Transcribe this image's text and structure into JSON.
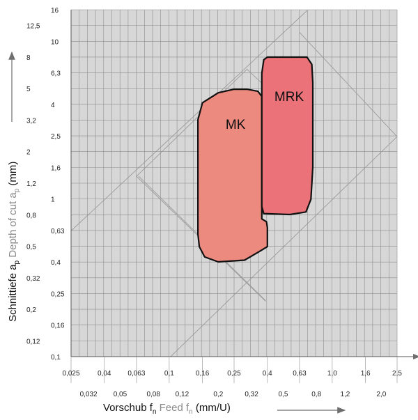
{
  "chart_data": {
    "type": "area",
    "x_scale": "log",
    "y_scale": "log",
    "xlim": [
      0.025,
      2.5
    ],
    "ylim": [
      0.1,
      16
    ],
    "grid": true,
    "colors": {
      "background": "#d7d7d7",
      "grid": "#8c8c8c",
      "diagonal": "#9a9a9a",
      "MK": "#ec8a80",
      "MRK": "#ec727a",
      "outline": "#111111"
    },
    "x_ticks_top": [
      "0,025",
      "0,04",
      "0,063",
      "0,1",
      "0,16",
      "0,25",
      "0,4",
      "0,63",
      "1,0",
      "1,6",
      "2,5"
    ],
    "x_ticks_bottom": [
      "0,032",
      "0,05",
      "0,08",
      "0,12",
      "0,2",
      "0,32",
      "0,5",
      "0,8",
      "1,2",
      "2,0"
    ],
    "y_ticks": [
      "0,1",
      "0,12",
      "0,16",
      "0,2",
      "0,25",
      "0,32",
      "0,4",
      "0,5",
      "0,63",
      "0,8",
      "1",
      "1,2",
      "1,6",
      "2",
      "2,5",
      "3,2",
      "4",
      "5",
      "6,3",
      "8",
      "10",
      "12,5",
      "16"
    ],
    "xlabel": {
      "de": "Vorschub f",
      "sub": "n",
      "en": " Feed f",
      "en_sub": "n",
      "unit": " (mm/U)"
    },
    "ylabel": {
      "de": "Schnittiefe a",
      "sub": "p",
      "en": " Depth of cut a",
      "en_sub": "p",
      "unit": " (mm)"
    },
    "regions": [
      {
        "name": "MK",
        "label": "MK",
        "polygon": [
          [
            0.15,
            3.2
          ],
          [
            0.16,
            4.1
          ],
          [
            0.2,
            4.75
          ],
          [
            0.25,
            5.0
          ],
          [
            0.3,
            5.0
          ],
          [
            0.35,
            4.85
          ],
          [
            0.37,
            4.5
          ],
          [
            0.37,
            0.75
          ],
          [
            0.395,
            0.72
          ],
          [
            0.4,
            0.66
          ],
          [
            0.4,
            0.5
          ],
          [
            0.35,
            0.46
          ],
          [
            0.29,
            0.41
          ],
          [
            0.2,
            0.4
          ],
          [
            0.165,
            0.43
          ],
          [
            0.153,
            0.5
          ],
          [
            0.15,
            0.6
          ]
        ]
      },
      {
        "name": "MRK",
        "label": "MRK",
        "polygon": [
          [
            0.37,
            6.3
          ],
          [
            0.38,
            7.7
          ],
          [
            0.4,
            8.0
          ],
          [
            0.7,
            8.0
          ],
          [
            0.75,
            7.2
          ],
          [
            0.76,
            5.5
          ],
          [
            0.76,
            1.6
          ],
          [
            0.74,
            1.0
          ],
          [
            0.69,
            0.83
          ],
          [
            0.55,
            0.8
          ],
          [
            0.38,
            0.81
          ],
          [
            0.37,
            0.9
          ]
        ]
      }
    ],
    "diagonals": [
      [
        [
          0.025,
          0.63
        ],
        [
          0.71,
          16
        ]
      ],
      [
        [
          0.063,
          1.4
        ],
        [
          0.39,
          0.225
        ]
      ],
      [
        [
          0.063,
          1.4
        ],
        [
          0.3,
          6.7
        ]
      ],
      [
        [
          0.102,
          0.1
        ],
        [
          2.5,
          2.5
        ]
      ],
      [
        [
          0.3,
          6.7
        ],
        [
          0.39,
          5.2
        ]
      ],
      [
        [
          0.63,
          11.5
        ],
        [
          2.5,
          2.5
        ]
      ],
      [
        [
          0.065,
          1.4
        ],
        [
          0.39,
          0.227
        ]
      ]
    ]
  }
}
